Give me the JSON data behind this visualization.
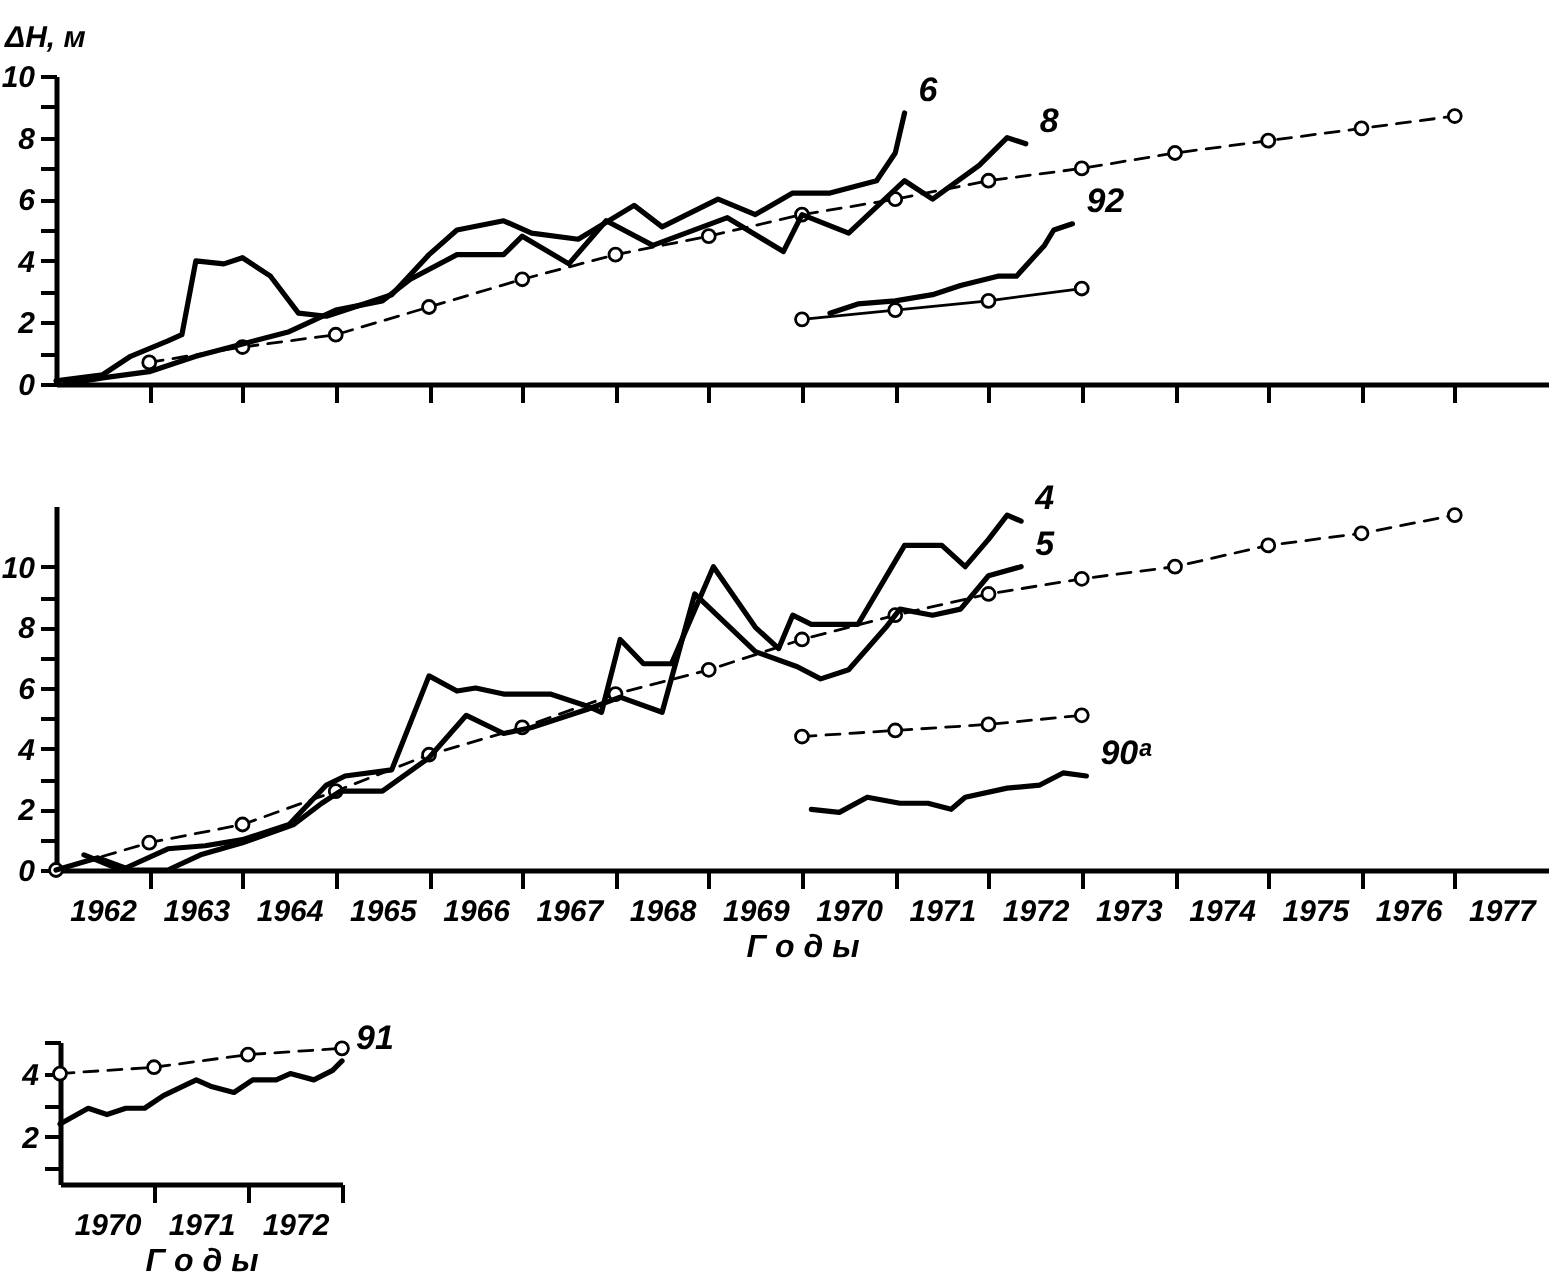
{
  "chart_data": [
    {
      "type": "line",
      "ylabel": "ΔH, м",
      "xlim": [
        1962,
        1978
      ],
      "ylim": [
        0,
        10
      ],
      "tick_labels": "y",
      "xticks": [
        {
          "value": 1963,
          "label": null
        },
        {
          "value": 1964,
          "label": null
        },
        {
          "value": 1965,
          "label": null
        },
        {
          "value": 1966,
          "label": null
        },
        {
          "value": 1967,
          "label": null
        },
        {
          "value": 1968,
          "label": null
        },
        {
          "value": 1969,
          "label": null
        },
        {
          "value": 1970,
          "label": null
        },
        {
          "value": 1971,
          "label": null
        },
        {
          "value": 1972,
          "label": null
        },
        {
          "value": 1973,
          "label": null
        },
        {
          "value": 1974,
          "label": null
        },
        {
          "value": 1975,
          "label": null
        },
        {
          "value": 1976,
          "label": null
        },
        {
          "value": 1977,
          "label": null
        }
      ],
      "yticks": [
        0,
        {
          "value": 1,
          "label": null
        },
        2,
        {
          "value": 3,
          "label": null
        },
        4,
        {
          "value": 5,
          "label": null
        },
        6,
        {
          "value": 7,
          "label": null
        },
        8,
        {
          "value": 9,
          "label": null
        },
        10
      ],
      "series": [
        {
          "color": "#000000",
          "line_style": "dashed",
          "marker": "circle",
          "x": [
            1963,
            1964,
            1965,
            1966,
            1967,
            1968,
            1969,
            1970,
            1971,
            1972,
            1973,
            1974,
            1975,
            1976,
            1977
          ],
          "values": [
            0.7,
            1.2,
            1.6,
            2.5,
            3.4,
            4.2,
            4.8,
            5.5,
            6.0,
            6.6,
            7.0,
            7.5,
            7.9,
            8.3,
            8.7
          ]
        },
        {
          "name": "6",
          "color": "#000000",
          "line_style": "solid",
          "marker": "none",
          "x": [
            1962.0,
            1962.5,
            1962.8,
            1963.2,
            1963.35,
            1963.5,
            1963.8,
            1964.0,
            1964.3,
            1964.6,
            1964.9,
            1965.3,
            1965.6,
            1966.0,
            1966.3,
            1966.8,
            1967.1,
            1967.6,
            1968.2,
            1968.5,
            1969.1,
            1969.5,
            1969.9,
            1970.3,
            1970.8,
            1971.0,
            1971.1
          ],
          "values": [
            0.1,
            0.3,
            0.9,
            1.4,
            1.6,
            4.0,
            3.9,
            4.1,
            3.5,
            2.3,
            2.2,
            2.6,
            2.9,
            4.2,
            5.0,
            5.3,
            4.9,
            4.7,
            5.8,
            5.1,
            6.0,
            5.5,
            6.2,
            6.2,
            6.6,
            7.5,
            8.8
          ]
        },
        {
          "name": "8",
          "color": "#000000",
          "line_style": "solid",
          "marker": "none",
          "x": [
            1962.1,
            1962.5,
            1963.0,
            1963.5,
            1964.0,
            1964.5,
            1965.0,
            1965.5,
            1965.8,
            1966.3,
            1966.8,
            1967.0,
            1967.5,
            1967.9,
            1968.4,
            1969.2,
            1969.8,
            1970.0,
            1970.5,
            1971.1,
            1971.4,
            1971.9,
            1972.2,
            1972.4
          ],
          "values": [
            0.0,
            0.2,
            0.4,
            0.9,
            1.3,
            1.7,
            2.4,
            2.7,
            3.4,
            4.2,
            4.2,
            4.8,
            3.9,
            5.3,
            4.5,
            5.4,
            4.3,
            5.5,
            4.9,
            6.6,
            6.0,
            7.1,
            8.0,
            7.8
          ]
        },
        {
          "color": "#000000",
          "line_style": "solid",
          "marker": "circle",
          "x": [
            1970,
            1971,
            1972,
            1973
          ],
          "values": [
            2.1,
            2.4,
            2.7,
            3.1
          ]
        },
        {
          "name": "92",
          "color": "#000000",
          "line_style": "solid",
          "marker": "none",
          "x": [
            1970.3,
            1970.6,
            1971.0,
            1971.4,
            1971.7,
            1972.1,
            1972.3,
            1972.6,
            1972.7,
            1972.9
          ],
          "values": [
            2.3,
            2.6,
            2.7,
            2.9,
            3.2,
            3.5,
            3.5,
            4.5,
            5.0,
            5.2
          ]
        }
      ]
    },
    {
      "type": "line",
      "xlabel": "Г о д ы",
      "xlim": [
        1962,
        1978
      ],
      "ylim": [
        0,
        12
      ],
      "xticks": [
        {
          "value": 1962.5,
          "label": "1962"
        },
        {
          "value": 1963,
          "label": null
        },
        {
          "value": 1963.5,
          "label": "1963"
        },
        {
          "value": 1964,
          "label": null
        },
        {
          "value": 1964.5,
          "label": "1964"
        },
        {
          "value": 1965,
          "label": null
        },
        {
          "value": 1965.5,
          "label": "1965"
        },
        {
          "value": 1966,
          "label": null
        },
        {
          "value": 1966.5,
          "label": "1966"
        },
        {
          "value": 1967,
          "label": null
        },
        {
          "value": 1967.5,
          "label": "1967"
        },
        {
          "value": 1968,
          "label": null
        },
        {
          "value": 1968.5,
          "label": "1968"
        },
        {
          "value": 1969,
          "label": null
        },
        {
          "value": 1969.5,
          "label": "1969"
        },
        {
          "value": 1970,
          "label": null
        },
        {
          "value": 1970.5,
          "label": "1970"
        },
        {
          "value": 1971,
          "label": null
        },
        {
          "value": 1971.5,
          "label": "1971"
        },
        {
          "value": 1972,
          "label": null
        },
        {
          "value": 1972.5,
          "label": "1972"
        },
        {
          "value": 1973,
          "label": null
        },
        {
          "value": 1973.5,
          "label": "1973"
        },
        {
          "value": 1974,
          "label": null
        },
        {
          "value": 1974.5,
          "label": "1974"
        },
        {
          "value": 1975,
          "label": null
        },
        {
          "value": 1975.5,
          "label": "1975"
        },
        {
          "value": 1976,
          "label": null
        },
        {
          "value": 1976.5,
          "label": "1976"
        },
        {
          "value": 1977,
          "label": null
        },
        {
          "value": 1977.5,
          "label": "1977"
        }
      ],
      "yticks": [
        0,
        {
          "value": 1,
          "label": null
        },
        2,
        {
          "value": 3,
          "label": null
        },
        4,
        {
          "value": 5,
          "label": null
        },
        6,
        {
          "value": 7,
          "label": null
        },
        8,
        {
          "value": 9,
          "label": null
        },
        10
      ],
      "series": [
        {
          "color": "#000000",
          "line_style": "dashed",
          "marker": "circle",
          "x": [
            1962,
            1963,
            1964,
            1965,
            1966,
            1967,
            1968,
            1969,
            1970,
            1971,
            1972,
            1973,
            1974,
            1975,
            1976,
            1977
          ],
          "values": [
            0,
            0.9,
            1.5,
            2.6,
            3.8,
            4.7,
            5.8,
            6.6,
            7.6,
            8.4,
            9.1,
            9.6,
            10.0,
            10.7,
            11.1,
            11.7
          ]
        },
        {
          "name": "4",
          "color": "#000000",
          "line_style": "solid",
          "marker": "none",
          "x": [
            1962.3,
            1962.7,
            1963.2,
            1963.6,
            1964.0,
            1964.5,
            1964.9,
            1965.1,
            1965.6,
            1966.0,
            1966.3,
            1966.5,
            1966.8,
            1967.3,
            1967.7,
            1967.85,
            1968.05,
            1968.3,
            1968.6,
            1969.05,
            1969.5,
            1969.75,
            1969.9,
            1970.1,
            1970.6,
            1970.85,
            1971.1,
            1971.5,
            1971.75,
            1972.0,
            1972.2,
            1972.35
          ],
          "values": [
            0.5,
            0.0,
            0.7,
            0.8,
            1.0,
            1.5,
            2.8,
            3.1,
            3.3,
            6.4,
            5.9,
            6.0,
            5.8,
            5.8,
            5.4,
            5.2,
            7.6,
            6.8,
            6.8,
            10.0,
            8.0,
            7.3,
            8.4,
            8.1,
            8.1,
            9.4,
            10.7,
            10.7,
            10.0,
            10.9,
            11.7,
            11.5
          ]
        },
        {
          "name": "5",
          "color": "#000000",
          "line_style": "solid",
          "marker": "none",
          "x": [
            1962.0,
            1962.45,
            1962.8,
            1963.2,
            1963.55,
            1964.0,
            1964.55,
            1964.85,
            1965.05,
            1965.5,
            1966.0,
            1966.4,
            1966.8,
            1967.1,
            1967.7,
            1968.05,
            1968.5,
            1968.85,
            1969.5,
            1969.95,
            1970.2,
            1970.5,
            1970.9,
            1971.05,
            1971.4,
            1971.7,
            1972.0,
            1972.35
          ],
          "values": [
            0.0,
            0.4,
            0.0,
            0.0,
            0.5,
            0.9,
            1.5,
            2.2,
            2.6,
            2.6,
            3.7,
            5.1,
            4.5,
            4.7,
            5.3,
            5.7,
            5.2,
            9.1,
            7.2,
            6.7,
            6.3,
            6.6,
            8.0,
            8.6,
            8.4,
            8.6,
            9.7,
            10.0
          ]
        },
        {
          "color": "#000000",
          "line_style": "dashed",
          "marker": "circle",
          "x": [
            1970,
            1971,
            1972,
            1973
          ],
          "values": [
            4.4,
            4.6,
            4.8,
            5.1
          ]
        },
        {
          "name": "90ᵃ",
          "color": "#000000",
          "line_style": "solid",
          "marker": "none",
          "x": [
            1970.1,
            1970.4,
            1970.7,
            1971.05,
            1971.35,
            1971.6,
            1971.75,
            1972.2,
            1972.55,
            1972.8,
            1973.05
          ],
          "values": [
            2.0,
            1.9,
            2.4,
            2.2,
            2.2,
            2.0,
            2.4,
            2.7,
            2.8,
            3.2,
            3.1
          ]
        }
      ]
    },
    {
      "type": "line",
      "xlabel": "Г о д ы",
      "xlim": [
        1970,
        1973
      ],
      "ylim": [
        0.5,
        5
      ],
      "xticks": [
        {
          "value": 1970.5,
          "label": "1970"
        },
        {
          "value": 1971,
          "label": null
        },
        {
          "value": 1971.5,
          "label": "1971"
        },
        {
          "value": 1972,
          "label": null
        },
        {
          "value": 1972.5,
          "label": "1972"
        },
        {
          "value": 1973,
          "label": null
        }
      ],
      "yticks": [
        {
          "value": 1,
          "label": null
        },
        2,
        {
          "value": 3,
          "label": null
        },
        4,
        {
          "value": 5,
          "label": null
        }
      ],
      "series": [
        {
          "color": "#000000",
          "line_style": "dashed",
          "marker": "circle",
          "x": [
            1970,
            1971,
            1972,
            1973
          ],
          "values": [
            4.0,
            4.2,
            4.6,
            4.8
          ]
        },
        {
          "name": "91",
          "color": "#000000",
          "line_style": "solid",
          "marker": "none",
          "x": [
            1970.0,
            1970.3,
            1970.5,
            1970.7,
            1970.9,
            1971.1,
            1971.45,
            1971.6,
            1971.85,
            1972.05,
            1972.3,
            1972.45,
            1972.7,
            1972.9,
            1973.0
          ],
          "values": [
            2.4,
            2.9,
            2.7,
            2.9,
            2.9,
            3.3,
            3.8,
            3.6,
            3.4,
            3.8,
            3.8,
            4.0,
            3.8,
            4.1,
            4.4
          ]
        }
      ]
    }
  ]
}
